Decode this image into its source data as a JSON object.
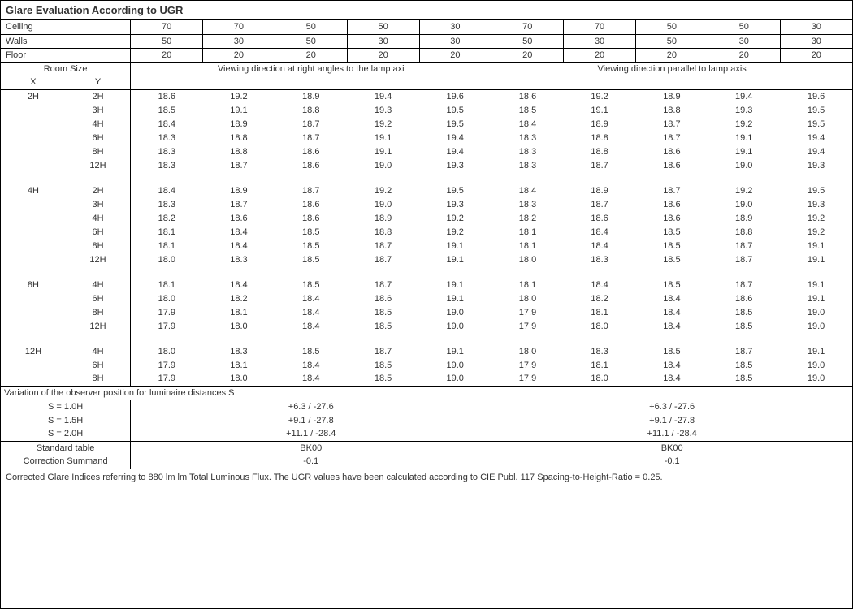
{
  "title": "Glare Evaluation According to UGR",
  "header_rows": [
    {
      "label": "Ceiling",
      "vals": [
        "70",
        "70",
        "50",
        "50",
        "30",
        "70",
        "70",
        "50",
        "50",
        "30"
      ]
    },
    {
      "label": "Walls",
      "vals": [
        "50",
        "30",
        "50",
        "30",
        "30",
        "50",
        "30",
        "50",
        "30",
        "30"
      ]
    },
    {
      "label": "Floor",
      "vals": [
        "20",
        "20",
        "20",
        "20",
        "20",
        "20",
        "20",
        "20",
        "20",
        "20"
      ]
    }
  ],
  "room_size_label": "Room Size",
  "x_label": "X",
  "y_label": "Y",
  "group_left_label": "Viewing direction at right angles to the lamp axi",
  "group_right_label": "Viewing direction parallel to lamp axis",
  "blocks": [
    {
      "x": "2H",
      "rows": [
        {
          "y": "2H",
          "l": [
            "18.6",
            "19.2",
            "18.9",
            "19.4",
            "19.6"
          ],
          "r": [
            "18.6",
            "19.2",
            "18.9",
            "19.4",
            "19.6"
          ]
        },
        {
          "y": "3H",
          "l": [
            "18.5",
            "19.1",
            "18.8",
            "19.3",
            "19.5"
          ],
          "r": [
            "18.5",
            "19.1",
            "18.8",
            "19.3",
            "19.5"
          ]
        },
        {
          "y": "4H",
          "l": [
            "18.4",
            "18.9",
            "18.7",
            "19.2",
            "19.5"
          ],
          "r": [
            "18.4",
            "18.9",
            "18.7",
            "19.2",
            "19.5"
          ]
        },
        {
          "y": "6H",
          "l": [
            "18.3",
            "18.8",
            "18.7",
            "19.1",
            "19.4"
          ],
          "r": [
            "18.3",
            "18.8",
            "18.7",
            "19.1",
            "19.4"
          ]
        },
        {
          "y": "8H",
          "l": [
            "18.3",
            "18.8",
            "18.6",
            "19.1",
            "19.4"
          ],
          "r": [
            "18.3",
            "18.8",
            "18.6",
            "19.1",
            "19.4"
          ]
        },
        {
          "y": "12H",
          "l": [
            "18.3",
            "18.7",
            "18.6",
            "19.0",
            "19.3"
          ],
          "r": [
            "18.3",
            "18.7",
            "18.6",
            "19.0",
            "19.3"
          ]
        }
      ]
    },
    {
      "x": "4H",
      "rows": [
        {
          "y": "2H",
          "l": [
            "18.4",
            "18.9",
            "18.7",
            "19.2",
            "19.5"
          ],
          "r": [
            "18.4",
            "18.9",
            "18.7",
            "19.2",
            "19.5"
          ]
        },
        {
          "y": "3H",
          "l": [
            "18.3",
            "18.7",
            "18.6",
            "19.0",
            "19.3"
          ],
          "r": [
            "18.3",
            "18.7",
            "18.6",
            "19.0",
            "19.3"
          ]
        },
        {
          "y": "4H",
          "l": [
            "18.2",
            "18.6",
            "18.6",
            "18.9",
            "19.2"
          ],
          "r": [
            "18.2",
            "18.6",
            "18.6",
            "18.9",
            "19.2"
          ]
        },
        {
          "y": "6H",
          "l": [
            "18.1",
            "18.4",
            "18.5",
            "18.8",
            "19.2"
          ],
          "r": [
            "18.1",
            "18.4",
            "18.5",
            "18.8",
            "19.2"
          ]
        },
        {
          "y": "8H",
          "l": [
            "18.1",
            "18.4",
            "18.5",
            "18.7",
            "19.1"
          ],
          "r": [
            "18.1",
            "18.4",
            "18.5",
            "18.7",
            "19.1"
          ]
        },
        {
          "y": "12H",
          "l": [
            "18.0",
            "18.3",
            "18.5",
            "18.7",
            "19.1"
          ],
          "r": [
            "18.0",
            "18.3",
            "18.5",
            "18.7",
            "19.1"
          ]
        }
      ]
    },
    {
      "x": "8H",
      "rows": [
        {
          "y": "4H",
          "l": [
            "18.1",
            "18.4",
            "18.5",
            "18.7",
            "19.1"
          ],
          "r": [
            "18.1",
            "18.4",
            "18.5",
            "18.7",
            "19.1"
          ]
        },
        {
          "y": "6H",
          "l": [
            "18.0",
            "18.2",
            "18.4",
            "18.6",
            "19.1"
          ],
          "r": [
            "18.0",
            "18.2",
            "18.4",
            "18.6",
            "19.1"
          ]
        },
        {
          "y": "8H",
          "l": [
            "17.9",
            "18.1",
            "18.4",
            "18.5",
            "19.0"
          ],
          "r": [
            "17.9",
            "18.1",
            "18.4",
            "18.5",
            "19.0"
          ]
        },
        {
          "y": "12H",
          "l": [
            "17.9",
            "18.0",
            "18.4",
            "18.5",
            "19.0"
          ],
          "r": [
            "17.9",
            "18.0",
            "18.4",
            "18.5",
            "19.0"
          ]
        }
      ]
    },
    {
      "x": "12H",
      "rows": [
        {
          "y": "4H",
          "l": [
            "18.0",
            "18.3",
            "18.5",
            "18.7",
            "19.1"
          ],
          "r": [
            "18.0",
            "18.3",
            "18.5",
            "18.7",
            "19.1"
          ]
        },
        {
          "y": "6H",
          "l": [
            "17.9",
            "18.1",
            "18.4",
            "18.5",
            "19.0"
          ],
          "r": [
            "17.9",
            "18.1",
            "18.4",
            "18.5",
            "19.0"
          ]
        },
        {
          "y": "8H",
          "l": [
            "17.9",
            "18.0",
            "18.4",
            "18.5",
            "19.0"
          ],
          "r": [
            "17.9",
            "18.0",
            "18.4",
            "18.5",
            "19.0"
          ]
        }
      ]
    }
  ],
  "variation_title": "Variation of the observer position for luminaire distances S",
  "variation_rows": [
    {
      "s": "S = 1.0H",
      "l": "+6.3 / -27.6",
      "r": "+6.3 / -27.6"
    },
    {
      "s": "S = 1.5H",
      "l": "+9.1 / -27.8",
      "r": "+9.1 / -27.8"
    },
    {
      "s": "S = 2.0H",
      "l": "+11.1 / -28.4",
      "r": "+11.1 / -28.4"
    }
  ],
  "standard_table_label": "Standard table",
  "standard_table_l": "BK00",
  "standard_table_r": "BK00",
  "correction_label": "Correction Summand",
  "correction_l": "-0.1",
  "correction_r": "-0.1",
  "footnote": "Corrected Glare Indices referring to 880 lm lm Total Luminous Flux. The UGR values have been calculated according to CIE Publ. 117    Spacing-to-Height-Ratio = 0.25."
}
